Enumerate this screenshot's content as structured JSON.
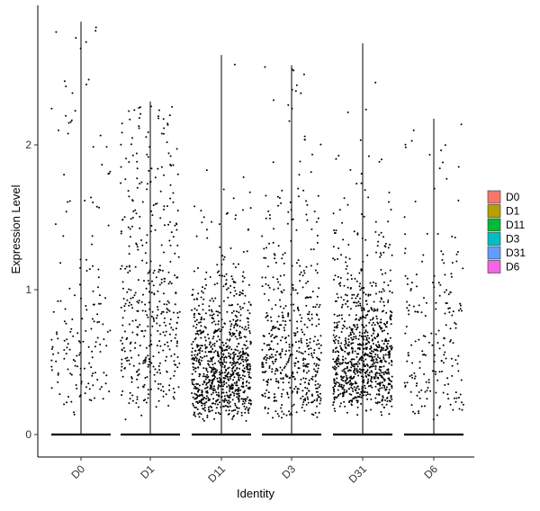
{
  "chart_data": {
    "type": "scatter",
    "style": "violin-plot-without-violins (jittered points with vertical range line)",
    "categories": [
      "D0",
      "D1",
      "D11",
      "D3",
      "D31",
      "D6"
    ],
    "xlabel": "Identity",
    "ylabel": "Expression Level",
    "ylim": [
      -0.08,
      2.85
    ],
    "yticks": [
      0,
      1,
      2
    ],
    "grid": false,
    "legend": {
      "placement": "right",
      "entries": [
        {
          "label": "D0",
          "color": "#F8766D"
        },
        {
          "label": "D1",
          "color": "#B79F00"
        },
        {
          "label": "D11",
          "color": "#00BA38"
        },
        {
          "label": "D3",
          "color": "#00BFC4"
        },
        {
          "label": "D31",
          "color": "#619CFF"
        },
        {
          "label": "D6",
          "color": "#F564E3"
        }
      ]
    },
    "groups": [
      {
        "name": "D0",
        "max": 2.85,
        "zero_fraction_visible": true,
        "n_points": 170,
        "median_nonzero": 0.75,
        "spread": "wide, sparse"
      },
      {
        "name": "D1",
        "max": 2.3,
        "zero_fraction_visible": true,
        "n_points": 420,
        "median_nonzero": 0.85,
        "spread": "wide"
      },
      {
        "name": "D11",
        "max": 2.62,
        "zero_fraction_visible": true,
        "n_points": 900,
        "median_nonzero": 0.45,
        "spread": "dense near 0.2-0.7"
      },
      {
        "name": "D3",
        "max": 2.55,
        "zero_fraction_visible": true,
        "n_points": 520,
        "median_nonzero": 0.6,
        "spread": "moderate"
      },
      {
        "name": "D31",
        "max": 2.7,
        "zero_fraction_visible": true,
        "n_points": 900,
        "median_nonzero": 0.55,
        "spread": "dense near 0.3-0.8"
      },
      {
        "name": "D6",
        "max": 2.18,
        "zero_fraction_visible": true,
        "n_points": 200,
        "median_nonzero": 0.6,
        "spread": "sparse"
      }
    ],
    "point_color": "#000000"
  }
}
